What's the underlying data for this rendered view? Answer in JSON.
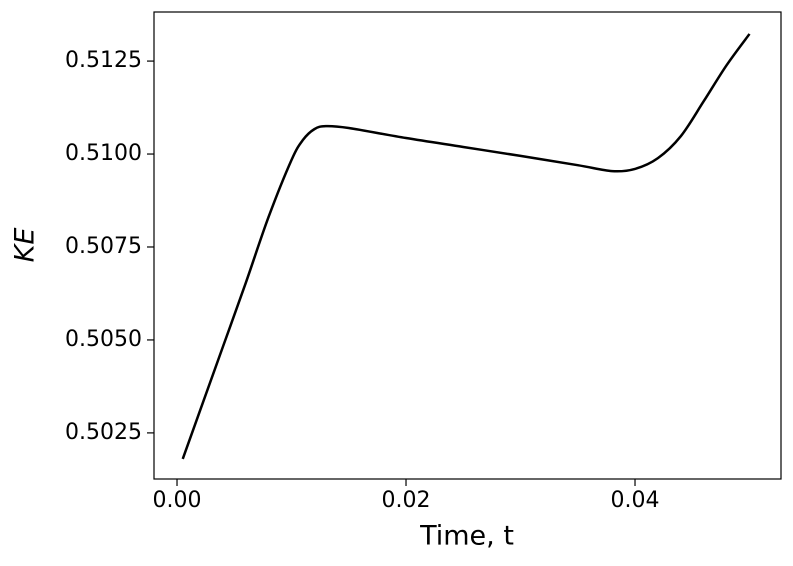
{
  "chart_data": {
    "type": "line",
    "x_label": "Time, t",
    "y_label": "KE",
    "y_label_italic": true,
    "x": [
      0.0005,
      0.002,
      0.004,
      0.006,
      0.008,
      0.01,
      0.011,
      0.012,
      0.013,
      0.015,
      0.02,
      0.025,
      0.03,
      0.035,
      0.038,
      0.04,
      0.042,
      0.044,
      0.046,
      0.048,
      0.05
    ],
    "series": [
      {
        "color": "#000000",
        "values": [
          0.5018,
          0.50309,
          0.50481,
          0.50653,
          0.50831,
          0.50984,
          0.51038,
          0.51067,
          0.51075,
          0.5107,
          0.51043,
          0.51019,
          0.50995,
          0.5097,
          0.50954,
          0.5096,
          0.50989,
          0.51048,
          0.51142,
          0.51239,
          0.51323
        ]
      }
    ],
    "xlim": [
      -0.00201,
      0.05275
    ],
    "ylim": [
      0.50126,
      0.51382
    ],
    "xticks": [
      {
        "value": 0,
        "label": "0.00"
      },
      {
        "value": 0.02,
        "label": "0.02"
      },
      {
        "value": 0.04,
        "label": "0.04"
      }
    ],
    "yticks": [
      0.5025,
      {
        "value": 0.505,
        "label": "0.5050"
      },
      0.5075,
      {
        "value": 0.51,
        "label": "0.5100"
      },
      0.5125
    ],
    "grid": false
  }
}
